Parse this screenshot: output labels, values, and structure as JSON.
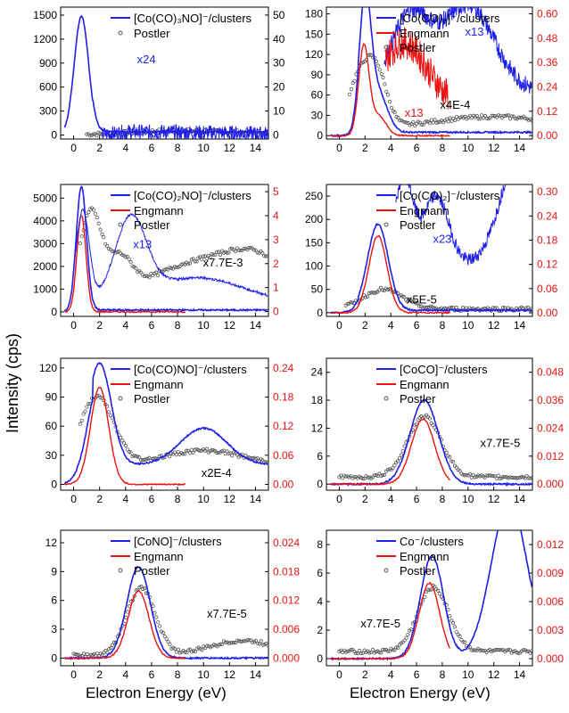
{
  "figure": {
    "ylabel": "Intensity (cps)",
    "xlabel_left": "Electron Energy (eV)",
    "xlabel_right": "Electron Energy (eV)"
  },
  "colors": {
    "blue": "#1f1fe8",
    "red": "#ee1111",
    "grey": "#555555"
  },
  "chart_data": [
    {
      "type": "line",
      "legend_main": "[Co(CO)₃NO]⁻/clusters",
      "legend": [
        "Postler"
      ],
      "series_names": [
        "[Co(CO)₃NO]⁻/clusters",
        "Postler"
      ],
      "x_ticks": [
        "0",
        "2",
        "4",
        "6",
        "8",
        "10",
        "12",
        "14"
      ],
      "xlim": [
        -1,
        15
      ],
      "y_ticks": [
        "0",
        "300",
        "600",
        "900",
        "1200",
        "1500"
      ],
      "ylim": [
        -50,
        1600
      ],
      "y2_ticks": [
        "0",
        "10",
        "20",
        "30",
        "40",
        "50"
      ],
      "y2lim": [
        -1.67,
        53.3
      ],
      "y2_color": "black",
      "annotations": [
        {
          "text": "x24",
          "x": 5.6,
          "y": 900,
          "color": "blue"
        }
      ],
      "main_peaks": [
        [
          0.6,
          1490,
          0.55
        ]
      ],
      "main_tail": 40,
      "scaled": {
        "peaks": [
          [
            4.2,
            20,
            0.7
          ],
          [
            6.5,
            25,
            1.6
          ],
          [
            10.5,
            19,
            2.2
          ]
        ],
        "base": 10,
        "from": 2.2,
        "to": 15,
        "noise": 0.12
      },
      "postler": {
        "peaks": [
          [
            6.8,
            31,
            2.8
          ],
          [
            12.5,
            29,
            4.5
          ]
        ],
        "from": 1.0,
        "to": 15,
        "base": 5
      }
    },
    {
      "type": "line",
      "legend_main": "[Co(CO)₃]⁻/clusters",
      "legend": [
        "Engmann",
        "Postler"
      ],
      "series_names": [
        "[Co(CO)₃]⁻/clusters",
        "Engmann",
        "Postler"
      ],
      "x_ticks": [
        "0",
        "2",
        "4",
        "6",
        "8",
        "10",
        "12",
        "14"
      ],
      "xlim": [
        -1,
        15
      ],
      "y_ticks": [
        "0",
        "30",
        "60",
        "90",
        "120",
        "150",
        "180"
      ],
      "ylim": [
        -5,
        190
      ],
      "y2_ticks": [
        "0.00",
        "0.12",
        "0.24",
        "0.36",
        "0.48",
        "0.60"
      ],
      "y2lim": [
        -0.017,
        0.633
      ],
      "y2_color": "red",
      "annotations": [
        {
          "text": "x13",
          "x": 10.5,
          "y": 148,
          "color": "blue"
        },
        {
          "text": "x13",
          "x": 5.8,
          "y": 28,
          "color": "red"
        },
        {
          "text": "x4E-4",
          "x": 9.0,
          "y": 40,
          "color": "black"
        }
      ],
      "main_peaks": [
        [
          2.0,
          190,
          0.45
        ],
        [
          3.0,
          60,
          0.7
        ]
      ],
      "main_tail": 5,
      "engmann_peaks": [
        [
          1.9,
          130,
          0.4
        ],
        [
          3.0,
          30,
          0.6
        ]
      ],
      "scaled": {
        "peaks": [
          [
            5.5,
            110,
            1.5
          ],
          [
            10,
            128,
            2.0
          ]
        ],
        "base": 65,
        "from": 3.5,
        "to": 15,
        "noise": 0.14
      },
      "scaled_red": {
        "peaks": [
          [
            5.0,
            92,
            1.8
          ]
        ],
        "base": 45,
        "from": 3.5,
        "to": 8.5,
        "noise": 0.25
      },
      "postler": {
        "peaks": [
          [
            1.7,
            78,
            1.0
          ],
          [
            3.0,
            60,
            0.8
          ],
          [
            12,
            20,
            5
          ]
        ],
        "from": 0.8,
        "to": 15,
        "base": 8
      }
    },
    {
      "type": "line",
      "legend_main": "[Co(CO)₂NO]⁻/clusters",
      "legend": [
        "Engmann",
        "Postler"
      ],
      "series_names": [
        "[Co(CO)₂NO]⁻/clusters",
        "Engmann",
        "Postler"
      ],
      "x_ticks": [
        "0",
        "2",
        "4",
        "6",
        "8",
        "10",
        "12",
        "14"
      ],
      "xlim": [
        -1,
        15
      ],
      "y_ticks": [
        "0",
        "1000",
        "2000",
        "3000",
        "4000",
        "5000"
      ],
      "ylim": [
        -200,
        5600
      ],
      "y2_ticks": [
        "0",
        "1",
        "2",
        "3",
        "4",
        "5"
      ],
      "y2lim": [
        -0.2,
        5.3
      ],
      "y2_color": "red",
      "annotations": [
        {
          "text": "x13",
          "x": 5.3,
          "y": 2800,
          "color": "blue"
        },
        {
          "text": "x7.7E-3",
          "x": 11.5,
          "y": 2000,
          "color": "black"
        }
      ],
      "main_peaks": [
        [
          0.6,
          5500,
          0.4
        ]
      ],
      "main_tail": 80,
      "engmann_peaks": [
        [
          0.6,
          4250,
          0.35
        ]
      ],
      "scaled": {
        "peaks": [
          [
            0.7,
            4000,
            0.5
          ],
          [
            4.4,
            3500,
            1.2
          ],
          [
            9.5,
            1100,
            3.5
          ]
        ],
        "base": 400,
        "from": 0.0,
        "to": 15,
        "noise": 0.02
      },
      "postler": {
        "peaks": [
          [
            1.3,
            3500,
            0.8
          ],
          [
            3.5,
            1500,
            1.0
          ],
          [
            9,
            1200,
            3
          ],
          [
            14,
            1600,
            2.5
          ]
        ],
        "from": 0.5,
        "to": 15,
        "base": 800
      }
    },
    {
      "type": "line",
      "legend_main": "[Co(CO)₂]⁻/clusters",
      "legend": [
        "Engmann",
        "Postler"
      ],
      "series_names": [
        "[Co(CO)₂]⁻/clusters",
        "Engmann",
        "Postler"
      ],
      "x_ticks": [
        "0",
        "2",
        "4",
        "6",
        "8",
        "10",
        "12",
        "14"
      ],
      "xlim": [
        -1,
        15
      ],
      "y_ticks": [
        "0",
        "50",
        "100",
        "150",
        "200",
        "250"
      ],
      "ylim": [
        -8,
        275
      ],
      "y2_ticks": [
        "0.00",
        "0.06",
        "0.12",
        "0.18",
        "0.24",
        "0.30"
      ],
      "y2lim": [
        -0.009,
        0.318
      ],
      "y2_color": "red",
      "annotations": [
        {
          "text": "x23",
          "x": 8.0,
          "y": 150,
          "color": "blue"
        },
        {
          "text": "x5E-5",
          "x": 6.4,
          "y": 20,
          "color": "black"
        }
      ],
      "main_peaks": [
        [
          3.0,
          185,
          0.8
        ]
      ],
      "main_tail": 5,
      "engmann_peaks": [
        [
          3.0,
          165,
          0.7
        ]
      ],
      "scaled": {
        "peaks": [
          [
            5.0,
            190,
            0.7
          ],
          [
            7.5,
            150,
            1.0
          ],
          [
            14.3,
            270,
            1.6
          ]
        ],
        "base": 100,
        "from": 4.4,
        "to": 15,
        "noise": 0.1
      },
      "postler": {
        "peaks": [
          [
            3.4,
            42,
            1.5
          ]
        ],
        "from": 0.5,
        "to": 15,
        "base": 8
      }
    },
    {
      "type": "line",
      "legend_main": "[Co(CO)NO]⁻/clusters",
      "legend": [
        "Engmann",
        "Postler"
      ],
      "series_names": [
        "[Co(CO)NO]⁻/clusters",
        "Engmann",
        "Postler"
      ],
      "x_ticks": [
        "0",
        "2",
        "4",
        "6",
        "8",
        "10",
        "12",
        "14"
      ],
      "xlim": [
        -1,
        15
      ],
      "y_ticks": [
        "0",
        "30",
        "60",
        "90",
        "120"
      ],
      "ylim": [
        -6,
        130
      ],
      "y2_ticks": [
        "0.00",
        "0.06",
        "0.12",
        "0.18",
        "0.24"
      ],
      "y2lim": [
        -0.012,
        0.26
      ],
      "y2_color": "red",
      "annotations": [
        {
          "text": "x2E-4",
          "x": 11.0,
          "y": 8,
          "color": "black"
        }
      ],
      "main_peaks": [
        [
          2.0,
          105,
          0.9
        ],
        [
          10,
          38,
          1.8
        ]
      ],
      "main_tail": 20,
      "engmann_peaks": [
        [
          2.0,
          100,
          0.7
        ]
      ],
      "postler": {
        "peaks": [
          [
            1.8,
            70,
            1.3
          ],
          [
            10,
            15,
            3
          ]
        ],
        "from": 0.5,
        "to": 15,
        "base": 20
      }
    },
    {
      "type": "line",
      "legend_main": "[CoCO]⁻/clusters",
      "legend": [
        "Engmann",
        "Postler"
      ],
      "series_names": [
        "[CoCO]⁻/clusters",
        "Engmann",
        "Postler"
      ],
      "x_ticks": [
        "0",
        "2",
        "4",
        "6",
        "8",
        "10",
        "12",
        "14"
      ],
      "xlim": [
        -1,
        15
      ],
      "y_ticks": [
        "0",
        "6",
        "12",
        "18",
        "24"
      ],
      "ylim": [
        -1.3,
        27
      ],
      "y2_ticks": [
        "0.000",
        "0.012",
        "0.024",
        "0.036",
        "0.048"
      ],
      "y2lim": [
        -0.0026,
        0.054
      ],
      "y2_color": "red",
      "annotations": [
        {
          "text": "x7.7E-5",
          "x": 12.5,
          "y": 8,
          "color": "black"
        }
      ],
      "main_peaks": [
        [
          6.6,
          18,
          1.1
        ]
      ],
      "main_tail": 0,
      "engmann_peaks": [
        [
          6.5,
          14,
          0.9
        ]
      ],
      "postler": {
        "peaks": [
          [
            6.6,
            13,
            1.3
          ]
        ],
        "from": 0,
        "to": 15,
        "base": 1.5
      }
    },
    {
      "type": "line",
      "legend_main": "[CoNO]⁻/clusters",
      "legend": [
        "Engmann",
        "Postler"
      ],
      "series_names": [
        "[CoNO]⁻/clusters",
        "Engmann",
        "Postler"
      ],
      "x_ticks": [
        "0",
        "2",
        "4",
        "6",
        "8",
        "10",
        "12",
        "14"
      ],
      "xlim": [
        -1,
        15
      ],
      "y_ticks": [
        "0",
        "3",
        "6",
        "9",
        "12"
      ],
      "ylim": [
        -0.8,
        13.3
      ],
      "y2_ticks": [
        "0.000",
        "0.006",
        "0.012",
        "0.018",
        "0.024"
      ],
      "y2_color": "red",
      "y2lim": [
        -0.0016,
        0.0266
      ],
      "annotations": [
        {
          "text": "x7.7E-5",
          "x": 11.8,
          "y": 4.2,
          "color": "black"
        }
      ],
      "main_peaks": [
        [
          5.0,
          9.5,
          0.9
        ]
      ],
      "main_tail": 0,
      "engmann_peaks": [
        [
          5.0,
          7,
          0.8
        ]
      ],
      "postler": {
        "peaks": [
          [
            5.2,
            7,
            1.1
          ],
          [
            13,
            1.5,
            2.5
          ]
        ],
        "from": 0,
        "to": 15,
        "base": 0.3
      }
    },
    {
      "type": "line",
      "legend_main": "Co⁻/clusters",
      "legend": [
        "Engmann",
        "Postler"
      ],
      "series_names": [
        "Co⁻/clusters",
        "Engmann",
        "Postler"
      ],
      "x_ticks": [
        "0",
        "2",
        "4",
        "6",
        "8",
        "10",
        "12",
        "14"
      ],
      "xlim": [
        -1,
        15
      ],
      "y_ticks": [
        "0",
        "2",
        "4",
        "6",
        "8"
      ],
      "ylim": [
        -0.5,
        9
      ],
      "y2_ticks": [
        "0.000",
        "0.003",
        "0.006",
        "0.009",
        "0.012"
      ],
      "y2lim": [
        -0.00075,
        0.0135
      ],
      "y2_color": "red",
      "annotations": [
        {
          "text": "x7.7E-5",
          "x": 3.2,
          "y": 2.2,
          "color": "black"
        }
      ],
      "main_peaks": [
        [
          7.2,
          7.2,
          0.9
        ],
        [
          13.2,
          11,
          1.4
        ]
      ],
      "main_tail": 0,
      "engmann_peaks": [
        [
          7.0,
          5.3,
          0.8
        ]
      ],
      "postler": {
        "peaks": [
          [
            7.3,
            4.5,
            1.2
          ]
        ],
        "from": 0,
        "to": 15,
        "base": 0.5
      }
    }
  ]
}
